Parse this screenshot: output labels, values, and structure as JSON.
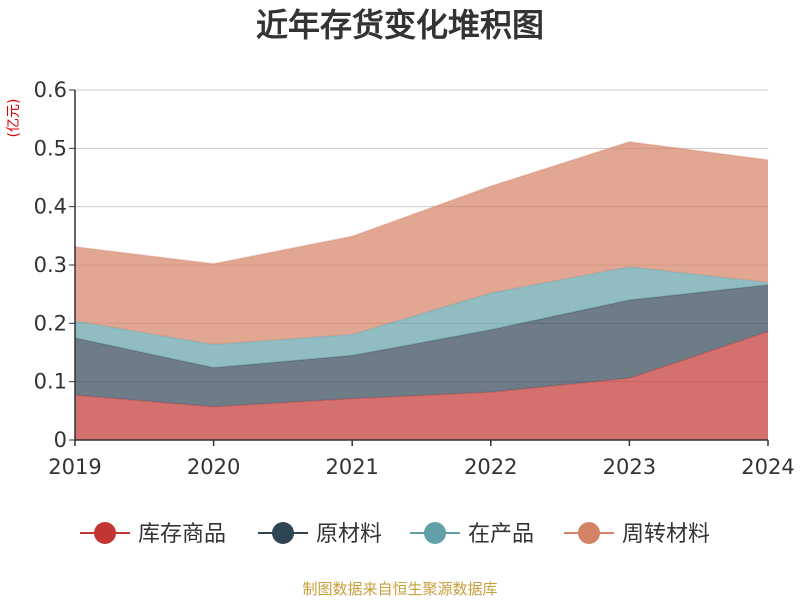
{
  "chart_data": {
    "type": "area",
    "stacked": true,
    "title": "近年存货变化堆积图",
    "y_unit": "(亿元)",
    "x": [
      "2019",
      "2020",
      "2021",
      "2022",
      "2023",
      "2024"
    ],
    "ylim": [
      0,
      0.6
    ],
    "y_ticks": [
      "0",
      "0.1",
      "0.2",
      "0.3",
      "0.4",
      "0.5",
      "0.6"
    ],
    "grid": true,
    "legend_position": "bottom",
    "series": [
      {
        "name": "库存商品",
        "values": [
          0.077,
          0.057,
          0.071,
          0.082,
          0.106,
          0.186
        ],
        "color": "#c23531"
      },
      {
        "name": "原材料",
        "values": [
          0.098,
          0.067,
          0.074,
          0.107,
          0.134,
          0.08
        ],
        "color": "#2f4554"
      },
      {
        "name": "在产品",
        "values": [
          0.029,
          0.04,
          0.036,
          0.063,
          0.057,
          0.004
        ],
        "color": "#61a0a8"
      },
      {
        "name": "周转材料",
        "values": [
          0.127,
          0.138,
          0.168,
          0.183,
          0.214,
          0.21
        ],
        "color": "#d48265"
      }
    ]
  },
  "source_text": "制图数据来自恒生聚源数据库",
  "colors": {
    "title": "#333333",
    "axis": "#333333",
    "grid": "#cccccc",
    "unit": "#e00000",
    "source": "#c8a03c"
  }
}
